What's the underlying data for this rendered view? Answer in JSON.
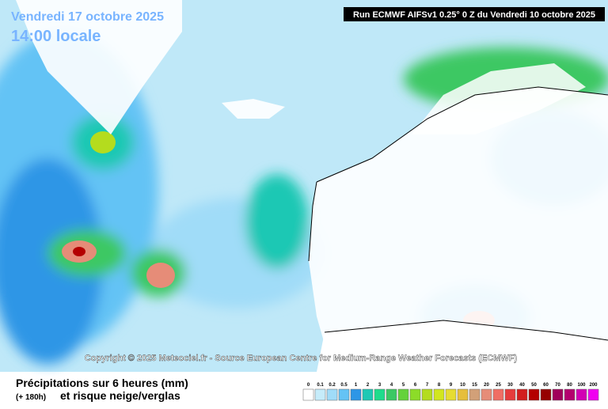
{
  "header": {
    "date": "Vendredi 17 octobre 2025",
    "time": "14:00 locale",
    "run": "Run ECMWF AIFSv1 0.25° 0 Z du Vendredi 10 octobre 2025"
  },
  "copyright": "Copyright © 2025 Meteociel.fr - Source European Centre for Medium-Range Weather Forecasts (ECMWF)",
  "footer": {
    "title": "Précipitations sur 6 heures (mm)",
    "lead": "(+ 180h)",
    "subtitle": "et risque neige/verglas"
  },
  "legend": {
    "items": [
      {
        "label": 0,
        "color": "#ffffff"
      },
      {
        "label": 0.1,
        "color": "#c6ecfa"
      },
      {
        "label": 0.2,
        "color": "#a0dcf8"
      },
      {
        "label": 0.5,
        "color": "#64c3f5"
      },
      {
        "label": 1,
        "color": "#2d96e6"
      },
      {
        "label": 2,
        "color": "#1ec8b4"
      },
      {
        "label": 3,
        "color": "#1edc8c"
      },
      {
        "label": 4,
        "color": "#3cc864"
      },
      {
        "label": 5,
        "color": "#64d23c"
      },
      {
        "label": 6,
        "color": "#8cdc28"
      },
      {
        "label": 7,
        "color": "#b4dc1e"
      },
      {
        "label": 8,
        "color": "#d2e61e"
      },
      {
        "label": 9,
        "color": "#e6dc32"
      },
      {
        "label": 10,
        "color": "#e6be3c"
      },
      {
        "label": 15,
        "color": "#d2a078"
      },
      {
        "label": 20,
        "color": "#e68c78"
      },
      {
        "label": 25,
        "color": "#f06e64"
      },
      {
        "label": 30,
        "color": "#e63c3c"
      },
      {
        "label": 40,
        "color": "#d21e1e"
      },
      {
        "label": 50,
        "color": "#b40000"
      },
      {
        "label": 60,
        "color": "#960000"
      },
      {
        "label": 70,
        "color": "#a0005a"
      },
      {
        "label": 80,
        "color": "#b4006e"
      },
      {
        "label": 100,
        "color": "#d200b4"
      },
      {
        "label": 200,
        "color": "#f000f0"
      }
    ]
  }
}
